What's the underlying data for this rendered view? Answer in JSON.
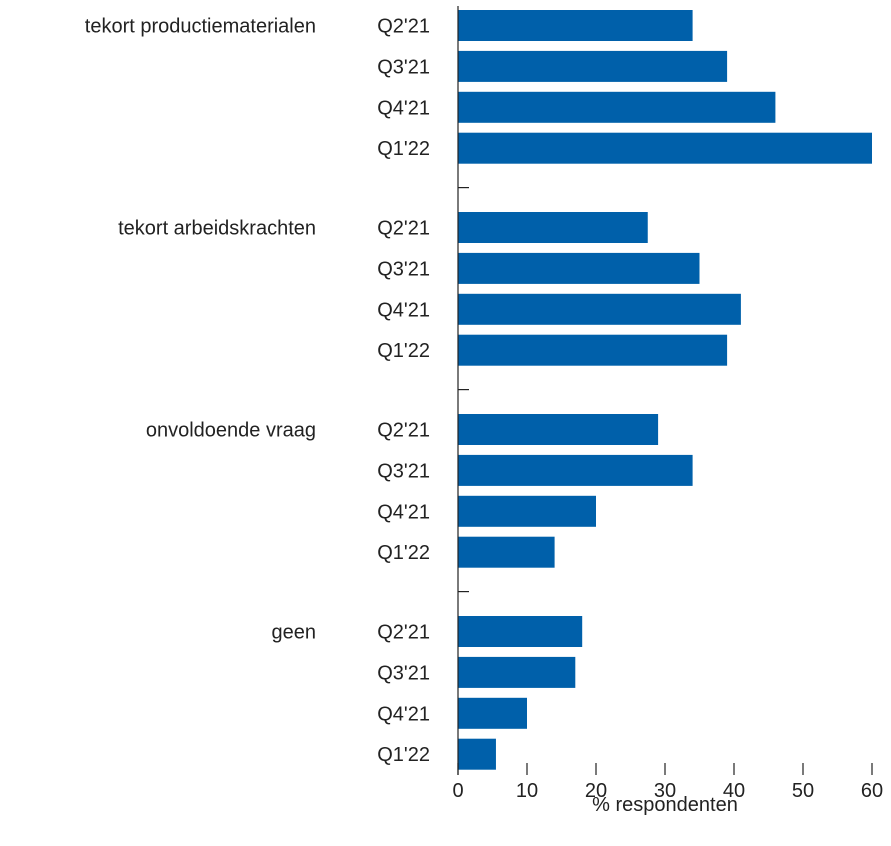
{
  "chart_data": {
    "type": "bar",
    "orientation": "horizontal",
    "groups": [
      {
        "label": "tekort productiematerialen",
        "categories": [
          "Q2'21",
          "Q3'21",
          "Q4'21",
          "Q1'22"
        ],
        "values": [
          34,
          39,
          46,
          60
        ]
      },
      {
        "label": "tekort arbeidskrachten",
        "categories": [
          "Q2'21",
          "Q3'21",
          "Q4'21",
          "Q1'22"
        ],
        "values": [
          27.5,
          35,
          41,
          39
        ]
      },
      {
        "label": "onvoldoende vraag",
        "categories": [
          "Q2'21",
          "Q3'21",
          "Q4'21",
          "Q1'22"
        ],
        "values": [
          29,
          34,
          20,
          14
        ]
      },
      {
        "label": "geen",
        "categories": [
          "Q2'21",
          "Q3'21",
          "Q4'21",
          "Q1'22"
        ],
        "values": [
          18,
          17,
          10,
          5.5
        ]
      }
    ],
    "xlabel": "% respondenten",
    "xlim": [
      0,
      60
    ],
    "xticks": [
      "0",
      "10",
      "20",
      "30",
      "40",
      "50",
      "60"
    ],
    "bar_color": "#0060aa",
    "grid": false
  }
}
